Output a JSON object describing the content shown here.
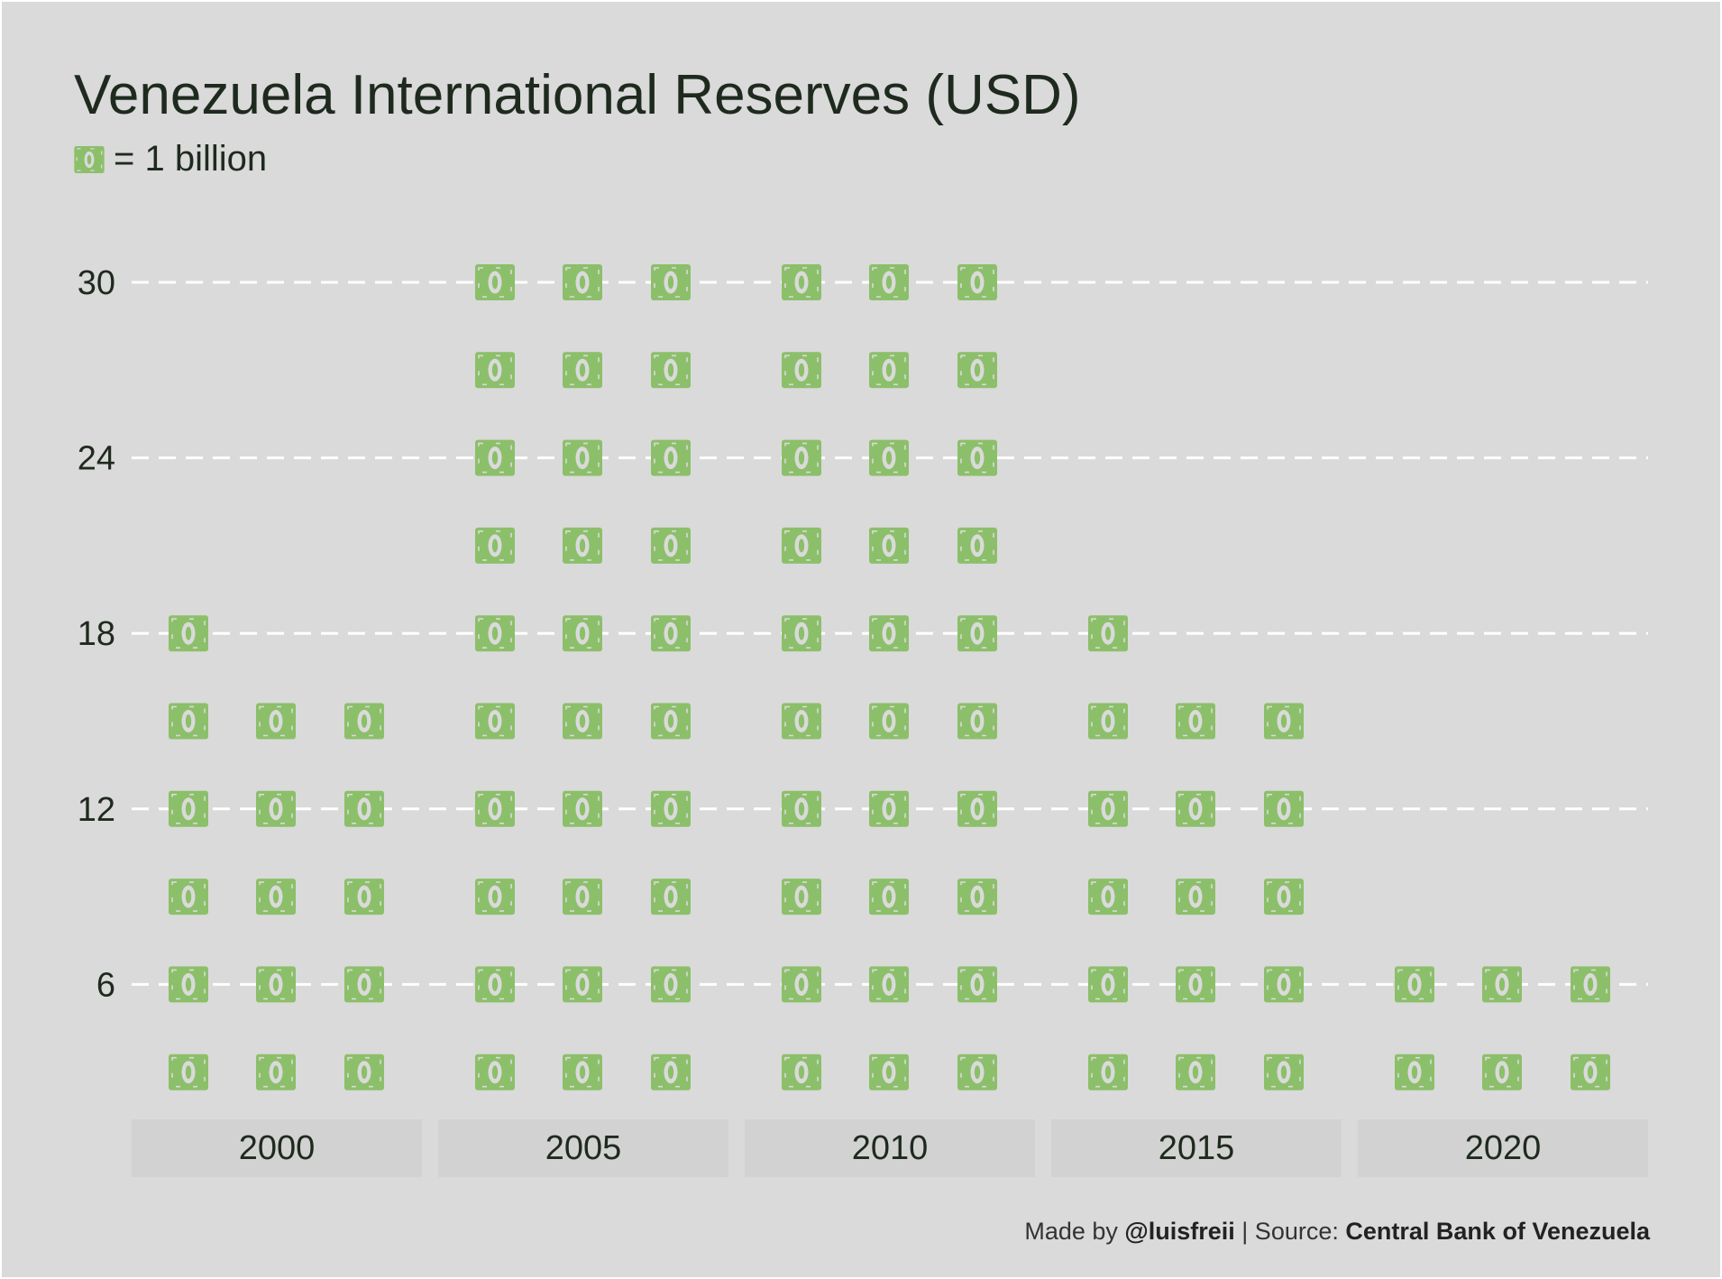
{
  "title": "Venezuela International Reserves (USD)",
  "legend_text": "= 1 billion",
  "caption": {
    "made_by_prefix": "Made by",
    "author": "@luisfreii",
    "source_prefix": "| Source:",
    "source": "Central Bank of Venezuela"
  },
  "colors": {
    "icon": "#8cbf6a",
    "background": "#dadada",
    "gridline": "#ffffff",
    "panel_strip": "#d2d2d2"
  },
  "icon": "dollar-bill-icon",
  "chart_data": {
    "type": "pictogram",
    "unit": "1 billion USD per icon",
    "y_ticks": [
      "6",
      "12",
      "18",
      "24",
      "30"
    ],
    "ylim": [
      0,
      30
    ],
    "grid": "horizontal dashed",
    "panels": [
      {
        "label": "2000",
        "values": [
          18,
          15,
          15
        ]
      },
      {
        "label": "2005",
        "values": [
          30,
          30,
          30
        ]
      },
      {
        "label": "2010",
        "values": [
          30,
          30,
          30
        ]
      },
      {
        "label": "2015",
        "values": [
          18,
          15,
          15
        ]
      },
      {
        "label": "2020",
        "values": [
          6,
          6,
          6
        ]
      }
    ]
  }
}
